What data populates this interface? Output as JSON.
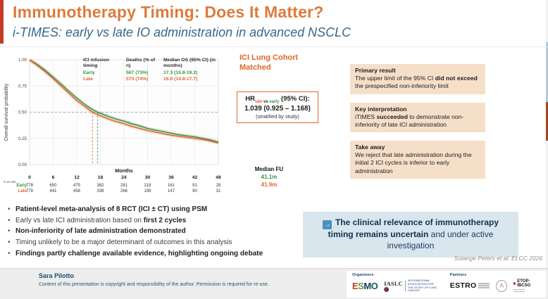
{
  "header": {
    "title": "Immunotherapy Timing: Does It Matter?",
    "subtitle": "i-TIMES: early vs late IO administration in advanced NSCLC"
  },
  "chart_data": {
    "type": "line",
    "subtype": "kaplan-meier",
    "title": "",
    "ylabel": "Overall survival probability",
    "xlabel": "Months",
    "xlim": [
      0,
      48
    ],
    "ylim": [
      0,
      1
    ],
    "xticks": [
      0,
      6,
      12,
      18,
      24,
      30,
      36,
      42,
      48
    ],
    "yticks": [
      "0.00",
      "0.25",
      "0.50",
      "0.75",
      "1.00"
    ],
    "grid": true,
    "legend": {
      "position": "top-right-inside",
      "columns": [
        "ICI infusion timing",
        "Deaths (% of n)",
        "Median OS (95% CI) (in months)"
      ],
      "rows": [
        {
          "name": "Early",
          "color": "#379244",
          "deaths": "567 (73%)",
          "median_os": "17.3 (15.8-19.2)"
        },
        {
          "name": "Late",
          "color": "#e2662c",
          "deaths": "573 (74%)",
          "median_os": "16.0 (14.8-17.7)"
        }
      ]
    },
    "reference_lines": {
      "h_dashed_y": 0.5,
      "v_dashed": [
        {
          "x": 16.0,
          "color": "#e2662c"
        },
        {
          "x": 17.3,
          "color": "#379244"
        }
      ]
    },
    "series": [
      {
        "name": "Early",
        "color": "#379244",
        "points": [
          [
            0,
            1.0
          ],
          [
            2,
            0.955
          ],
          [
            4,
            0.9
          ],
          [
            6,
            0.835
          ],
          [
            8,
            0.77
          ],
          [
            10,
            0.7
          ],
          [
            12,
            0.635
          ],
          [
            14,
            0.575
          ],
          [
            16,
            0.525
          ],
          [
            17.3,
            0.5
          ],
          [
            18,
            0.49
          ],
          [
            20,
            0.46
          ],
          [
            22,
            0.435
          ],
          [
            24,
            0.415
          ],
          [
            26,
            0.39
          ],
          [
            28,
            0.37
          ],
          [
            30,
            0.345
          ],
          [
            32,
            0.33
          ],
          [
            34,
            0.315
          ],
          [
            36,
            0.3
          ],
          [
            38,
            0.285
          ],
          [
            40,
            0.275
          ],
          [
            42,
            0.265
          ],
          [
            44,
            0.25
          ],
          [
            46,
            0.235
          ],
          [
            48,
            0.215
          ]
        ]
      },
      {
        "name": "Late",
        "color": "#e2662c",
        "points": [
          [
            0,
            1.0
          ],
          [
            2,
            0.945
          ],
          [
            4,
            0.885
          ],
          [
            6,
            0.82
          ],
          [
            8,
            0.75
          ],
          [
            10,
            0.68
          ],
          [
            12,
            0.61
          ],
          [
            14,
            0.555
          ],
          [
            16,
            0.5
          ],
          [
            18,
            0.465
          ],
          [
            20,
            0.435
          ],
          [
            22,
            0.41
          ],
          [
            24,
            0.39
          ],
          [
            26,
            0.365
          ],
          [
            28,
            0.345
          ],
          [
            30,
            0.325
          ],
          [
            32,
            0.31
          ],
          [
            34,
            0.295
          ],
          [
            36,
            0.28
          ],
          [
            38,
            0.27
          ],
          [
            40,
            0.26
          ],
          [
            42,
            0.25
          ],
          [
            44,
            0.24
          ],
          [
            46,
            0.225
          ],
          [
            48,
            0.205
          ]
        ]
      }
    ],
    "risk_table": {
      "label": "N at risk",
      "months": [
        0,
        6,
        12,
        18,
        24,
        30,
        36,
        42,
        48
      ],
      "rows": [
        {
          "name": "Early",
          "color": "#379244",
          "values": [
            778,
            650,
            475,
            382,
            281,
            218,
            161,
            91,
            28
          ]
        },
        {
          "name": "Late",
          "color": "#e2662c",
          "values": [
            778,
            641,
            458,
            338,
            266,
            199,
            147,
            90,
            31
          ]
        }
      ]
    }
  },
  "middle": {
    "cohort_line1": "ICI Lung Cohort",
    "cohort_line2": "Matched",
    "hr": {
      "prefix": "HR",
      "sub_late": "late",
      "sub_vs": " vs ",
      "sub_early": "early",
      "suffix": " (95% CI):",
      "value": "1.039 (0.925 – 1.168)",
      "note": "(stratified by study)"
    },
    "median_fu": {
      "label": "Median FU",
      "early": "41.1m",
      "late": "41.9m"
    }
  },
  "findings": [
    {
      "title": "Primary result",
      "segments": [
        {
          "t": "The upper limit of the 95% CI ",
          "b": false
        },
        {
          "t": "did not exceed",
          "b": true
        },
        {
          "t": " the prespecified non-inferiority limit",
          "b": false
        }
      ]
    },
    {
      "title": "Key interpretation",
      "segments": [
        {
          "t": "iTIMES ",
          "b": false
        },
        {
          "t": "succeeded",
          "b": true
        },
        {
          "t": " to demonstrate non-inferiority of late ICI administration",
          "b": false
        }
      ]
    },
    {
      "title": "Take away",
      "segments": [
        {
          "t": "We reject that late administration during the initial 2 ICI cycles is inferior to early administration",
          "b": false
        }
      ]
    }
  ],
  "bullets": [
    {
      "segments": [
        {
          "t": "Patient-level meta-analysis of 8 RCT (ICI ± CT) using PSM",
          "b": true
        }
      ]
    },
    {
      "segments": [
        {
          "t": "Early vs late ICI administration based on ",
          "b": false
        },
        {
          "t": "first 2 cycles",
          "b": true
        }
      ]
    },
    {
      "segments": [
        {
          "t": "Non-inferiority of late administration demonstrated",
          "b": true
        }
      ]
    },
    {
      "segments": [
        {
          "t": "Timing unlikely to be a major determinant of outcomes in this analysis",
          "b": false
        }
      ]
    },
    {
      "segments": [
        {
          "t": "Findings  partly challenge available evidence, highlighting ongoing debate",
          "b": true
        }
      ]
    }
  ],
  "conclusion": {
    "arrow_icon": "→",
    "segments": [
      {
        "t": "The clinical relevance of immunotherapy timing remains uncertain",
        "b": true
      },
      {
        "t": " and under active investigation",
        "b": false
      }
    ]
  },
  "citation": "Solange Peters et al. ELCC 2026",
  "footer": {
    "author": "Sara Pilotto",
    "copyright": "Content of this presentation is copyright and responsibility of the author. Permission is required for re-use.",
    "organisers_label": "Organisers",
    "partners_label": "Partners",
    "logos": {
      "esmo": "ESMO",
      "esmo_colors": [
        "#c0392b",
        "#5a9e3c",
        "#1f3864",
        "#0c5e52"
      ],
      "iaslc": "IASLC",
      "iaslc_text": "International Association for the Study of Lung Cancer",
      "estro": "ESTRO",
      "etop": "ETOP-IBCSG"
    }
  },
  "colors": {
    "title_orange": "#dd7b3d",
    "subtitle_blue": "#36688c",
    "early_green": "#379244",
    "late_orange": "#e2662c",
    "finding_box_bg": "#f6dfc9",
    "conclusion_bg": "#d9e6ee",
    "accent_red": "#c6392b"
  }
}
